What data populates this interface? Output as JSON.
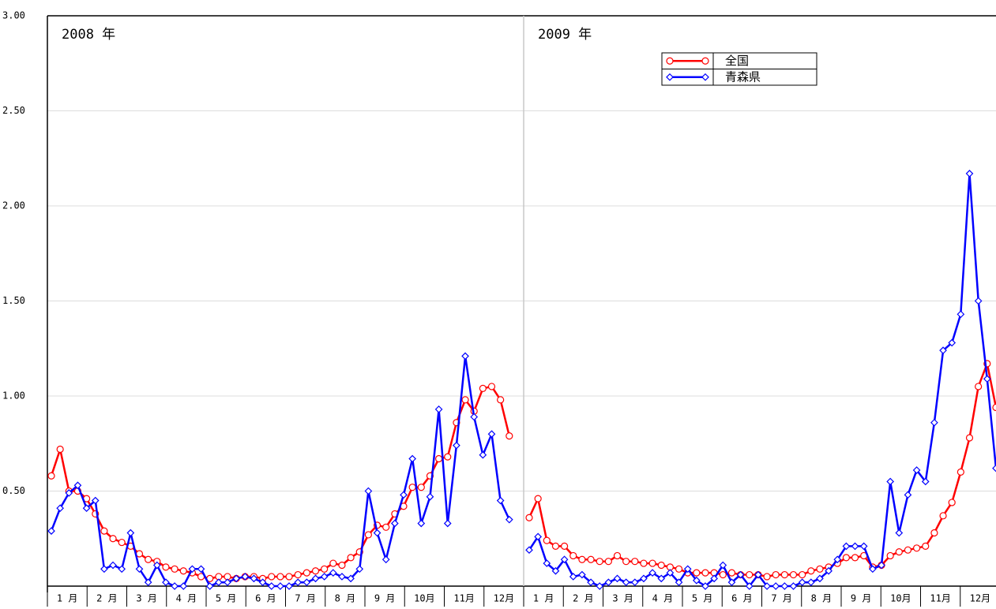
{
  "chart_data": {
    "type": "line",
    "ylim": [
      0,
      3
    ],
    "yticks": [
      {
        "value": 0.5,
        "label": "0.50"
      },
      {
        "value": 1,
        "label": "1.00"
      },
      {
        "value": 1.5,
        "label": "1.50"
      },
      {
        "value": 2,
        "label": "2.00"
      },
      {
        "value": 2.5,
        "label": "2.50"
      },
      {
        "value": 3,
        "label": "3.00"
      }
    ],
    "grid": true,
    "panels": [
      {
        "title": "2008 年",
        "months": [
          "1 月",
          "2 月",
          "3 月",
          "4 月",
          "5 月",
          "6 月",
          "7 月",
          "8 月",
          "9 月",
          "10月",
          "11月",
          "12月"
        ]
      },
      {
        "title": "2009 年",
        "months": [
          "1 月",
          "2 月",
          "3 月",
          "4 月",
          "5 月",
          "6 月",
          "7 月",
          "8 月",
          "9 月",
          "10月",
          "11月",
          "12月"
        ]
      }
    ],
    "series": [
      {
        "name": "全国",
        "color": "#ff0000",
        "marker": "circle",
        "values": [
          [
            0.58,
            0.72,
            0.5,
            0.5,
            0.46,
            0.38,
            0.29,
            0.25,
            0.23,
            0.21,
            0.17,
            0.14,
            0.13,
            0.1,
            0.09,
            0.08,
            0.07,
            0.05,
            0.04,
            0.05,
            0.05,
            0.04,
            0.05,
            0.05,
            0.04,
            0.05,
            0.05,
            0.05,
            0.06,
            0.07,
            0.08,
            0.09,
            0.12,
            0.11,
            0.15,
            0.18,
            0.27,
            0.32,
            0.31,
            0.38,
            0.42,
            0.52,
            0.52,
            0.58,
            0.67,
            0.68,
            0.86,
            0.98,
            0.92,
            1.04,
            1.05,
            0.98,
            0.79
          ],
          [
            0.36,
            0.46,
            0.24,
            0.21,
            0.21,
            0.16,
            0.14,
            0.14,
            0.13,
            0.13,
            0.16,
            0.13,
            0.13,
            0.12,
            0.12,
            0.11,
            0.1,
            0.09,
            0.07,
            0.07,
            0.07,
            0.07,
            0.06,
            0.07,
            0.06,
            0.06,
            0.06,
            0.05,
            0.06,
            0.06,
            0.06,
            0.06,
            0.08,
            0.09,
            0.1,
            0.12,
            0.15,
            0.15,
            0.16,
            0.1,
            0.11,
            0.16,
            0.18,
            0.19,
            0.2,
            0.21,
            0.28,
            0.37,
            0.44,
            0.6,
            0.78,
            1.05,
            1.17,
            0.94
          ]
        ]
      },
      {
        "name": "青森県",
        "color": "#0000ff",
        "marker": "diamond",
        "values": [
          [
            0.29,
            0.41,
            0.49,
            0.53,
            0.41,
            0.45,
            0.09,
            0.11,
            0.09,
            0.28,
            0.09,
            0.02,
            0.11,
            0.02,
            0.0,
            0.0,
            0.09,
            0.09,
            0.0,
            0.02,
            0.02,
            0.04,
            0.05,
            0.04,
            0.02,
            0.0,
            0.0,
            0.0,
            0.02,
            0.02,
            0.04,
            0.05,
            0.07,
            0.05,
            0.04,
            0.09,
            0.5,
            0.28,
            0.14,
            0.33,
            0.48,
            0.67,
            0.33,
            0.47,
            0.93,
            0.33,
            0.74,
            1.21,
            0.89,
            0.69,
            0.8,
            0.45,
            0.35
          ],
          [
            0.19,
            0.26,
            0.12,
            0.08,
            0.14,
            0.05,
            0.06,
            0.02,
            0.0,
            0.02,
            0.04,
            0.02,
            0.02,
            0.04,
            0.07,
            0.04,
            0.07,
            0.02,
            0.09,
            0.03,
            0.0,
            0.04,
            0.11,
            0.02,
            0.06,
            0.0,
            0.06,
            0.0,
            0.0,
            0.0,
            0.0,
            0.02,
            0.02,
            0.04,
            0.08,
            0.14,
            0.21,
            0.21,
            0.21,
            0.09,
            0.11,
            0.55,
            0.28,
            0.48,
            0.61,
            0.55,
            0.86,
            1.24,
            1.28,
            1.43,
            2.17,
            1.5,
            1.09,
            0.62
          ]
        ]
      }
    ]
  }
}
